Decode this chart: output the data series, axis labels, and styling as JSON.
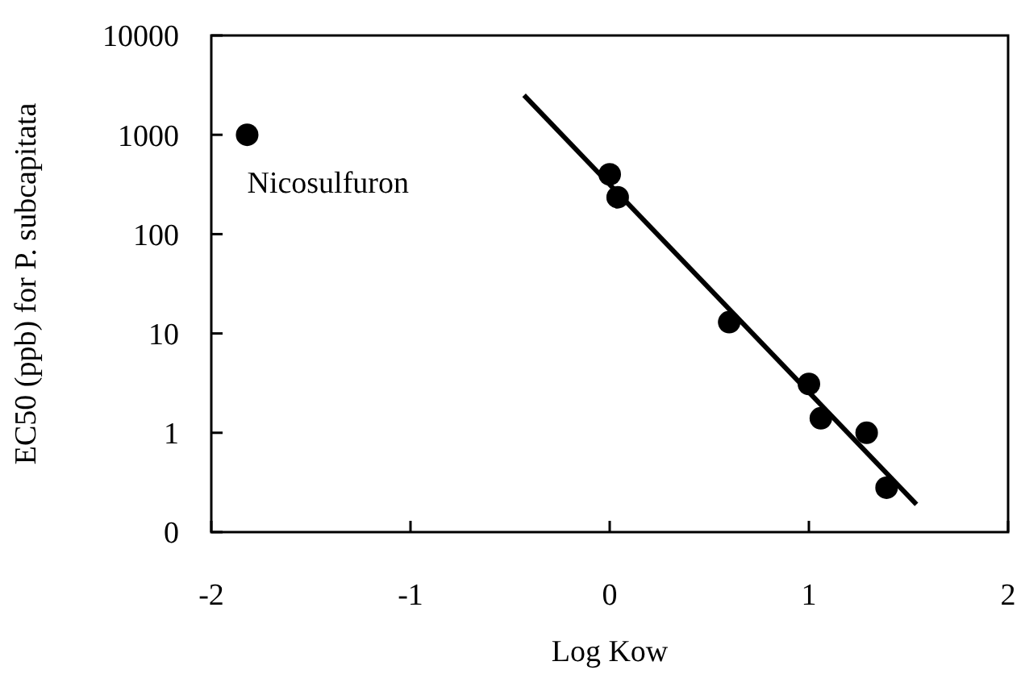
{
  "chart_data": {
    "type": "scatter",
    "xlabel": "Log Kow",
    "ylabel": "EC50 (ppb) for P. subcapitata",
    "log": "y",
    "xlim": [
      -2,
      2
    ],
    "xticks": [
      -2,
      -1,
      0,
      1,
      2
    ],
    "ylim": [
      0.1,
      10000
    ],
    "yticks": [
      {
        "value": 0.1,
        "label": "0"
      },
      1,
      10,
      100,
      1000,
      10000
    ],
    "grid": false,
    "series": [
      {
        "color": "#000000",
        "marker": "circle",
        "x": [
          -1.82,
          0,
          0.04,
          0.6,
          1.0,
          1.06,
          1.29,
          1.39
        ],
        "values": [
          1000,
          400,
          235,
          13,
          3.1,
          1.4,
          1.0,
          0.28
        ]
      },
      {
        "type": "line",
        "color": "#000000",
        "x": [
          -0.43,
          1.54
        ],
        "values": [
          2500,
          0.19
        ]
      }
    ],
    "annotations": [
      {
        "text": "Nicosulfuron",
        "x": -1.82,
        "y": 1000
      }
    ]
  }
}
